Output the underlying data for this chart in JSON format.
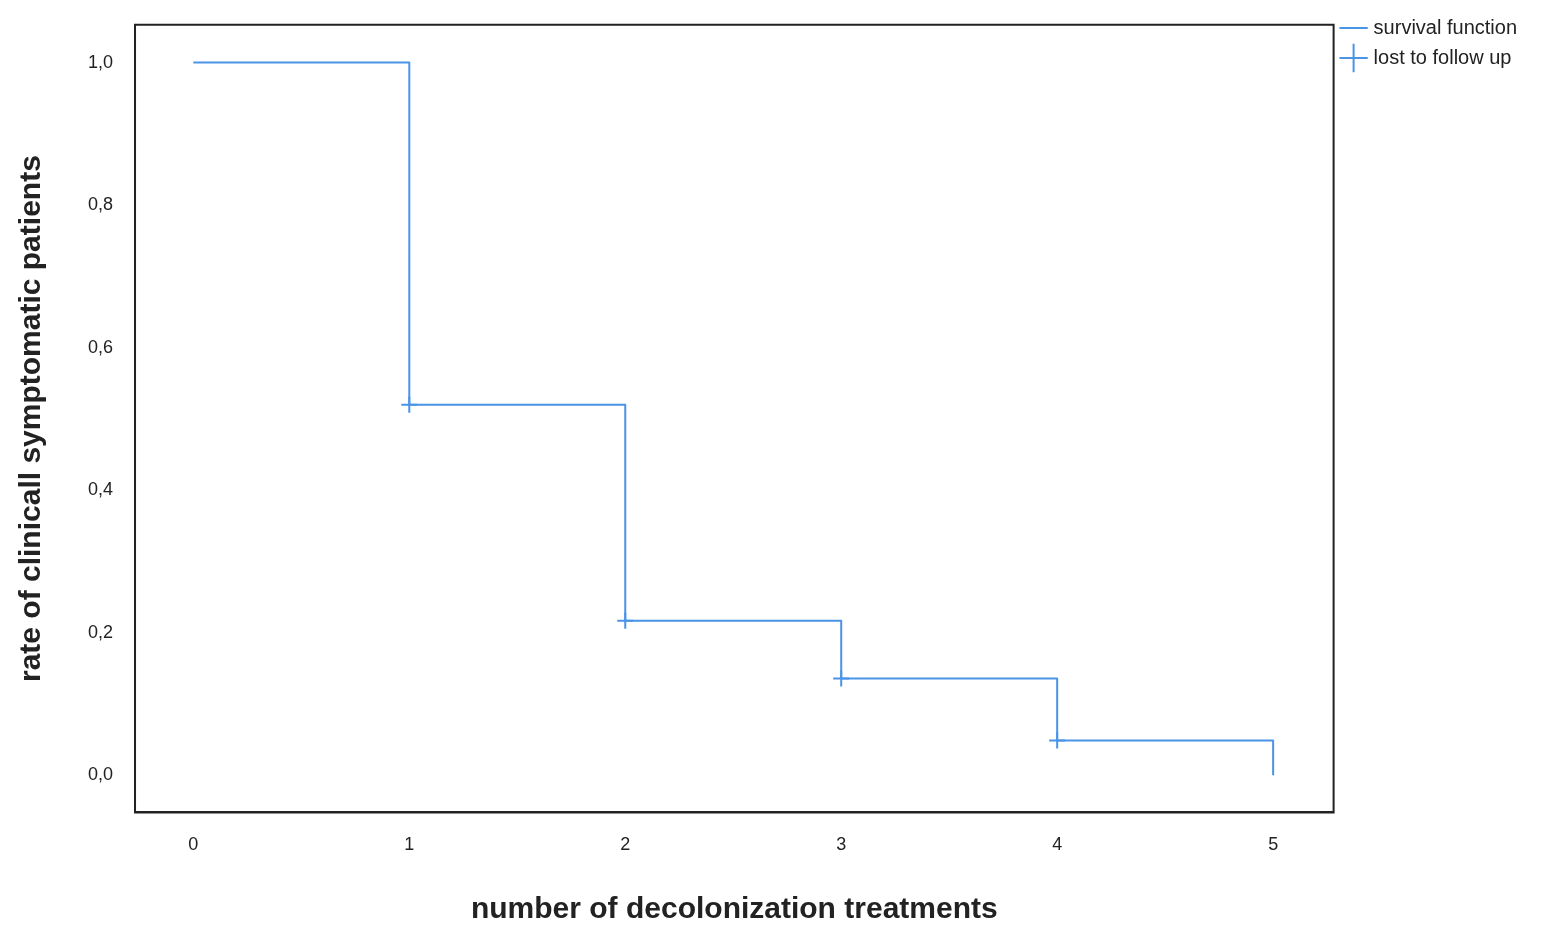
{
  "chart_data": {
    "type": "step",
    "xlabel": "number of decolonization treatments",
    "ylabel": "rate of clinicall symptomatic patients",
    "series": [
      {
        "name": "survival function",
        "color": "#4a94e8",
        "x": [
          0,
          1,
          2,
          3,
          4,
          5
        ],
        "values": [
          1.0,
          0.52,
          0.217,
          0.136,
          0.049,
          0.0
        ],
        "marker": "none"
      },
      {
        "name": "lost to follow up",
        "type": "scatter",
        "color": "#4a94e8",
        "x": [
          1,
          2,
          3,
          4
        ],
        "values": [
          0.52,
          0.217,
          0.136,
          0.049
        ],
        "marker": "cross"
      }
    ],
    "xlim": [
      -0.27,
      5.28
    ],
    "xticks": [
      0,
      1,
      2,
      3,
      4,
      5
    ],
    "ylim": [
      -0.052,
      1.053
    ],
    "yticks": [
      {
        "value": 0,
        "label": "0,0"
      },
      {
        "value": 0.2,
        "label": "0,2"
      },
      {
        "value": 0.4,
        "label": "0,4"
      },
      {
        "value": 0.6,
        "label": "0,6"
      },
      {
        "value": 0.8,
        "label": "0,8"
      },
      {
        "value": 1,
        "label": "1,0"
      }
    ],
    "grid": false,
    "legend": "top right"
  }
}
